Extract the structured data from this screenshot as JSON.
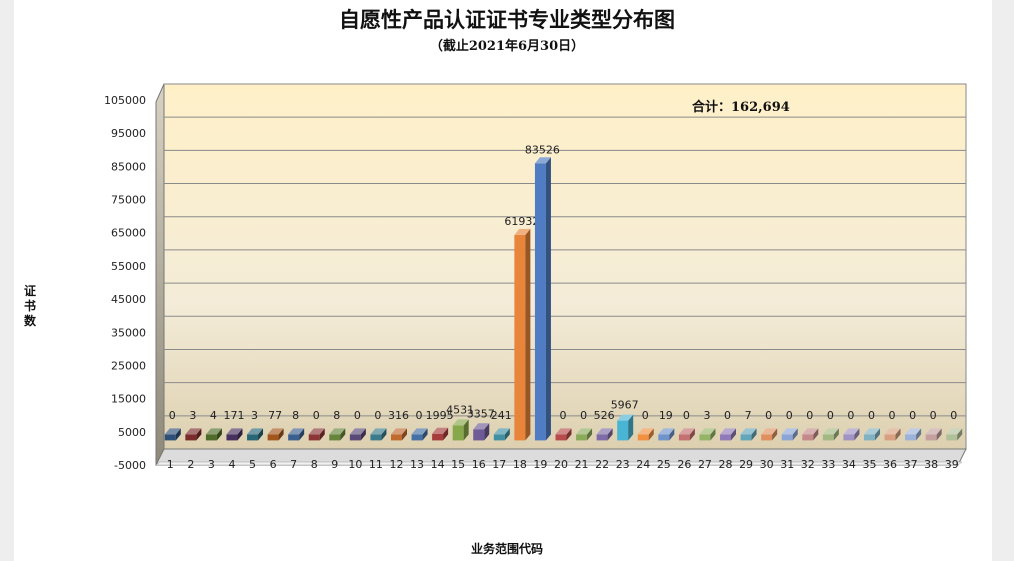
{
  "chart_data": {
    "type": "bar",
    "title": "自愿性产品认证证书专业类型分布图",
    "subtitle": "（截止2021年6月30日）",
    "ylabel": "证书数",
    "xlabel": "业务范围代码",
    "total_label": "合计：162,694",
    "ylim": [
      -5000,
      105000
    ],
    "yticks": [
      -5000,
      5000,
      15000,
      25000,
      35000,
      45000,
      55000,
      65000,
      75000,
      85000,
      95000,
      105000
    ],
    "grid": true,
    "legend": "none",
    "categories": [
      "1",
      "2",
      "3",
      "4",
      "5",
      "6",
      "7",
      "8",
      "9",
      "10",
      "11",
      "12",
      "13",
      "14",
      "15",
      "16",
      "17",
      "18",
      "19",
      "20",
      "21",
      "22",
      "23",
      "24",
      "25",
      "26",
      "27",
      "28",
      "29",
      "30",
      "31",
      "32",
      "33",
      "34",
      "35",
      "36",
      "37",
      "38",
      "39"
    ],
    "values": [
      0,
      3,
      4,
      171,
      3,
      77,
      8,
      0,
      8,
      0,
      0,
      316,
      0,
      1995,
      4531,
      3357,
      241,
      61932,
      83526,
      0,
      0,
      526,
      5967,
      0,
      19,
      0,
      3,
      0,
      7,
      0,
      0,
      0,
      0,
      0,
      0,
      0,
      0,
      0,
      0
    ],
    "colors": [
      "#2e4f78",
      "#7a2b2b",
      "#4f6b2a",
      "#46305e",
      "#276577",
      "#a3561c",
      "#3b5f8f",
      "#8c3535",
      "#66843a",
      "#5a4878",
      "#3a7c8c",
      "#c06a30",
      "#4470a6",
      "#a63c3c",
      "#86a84a",
      "#6d5a96",
      "#4090a2",
      "#e8853a",
      "#4f7cc2",
      "#b84c4c",
      "#8aaa5a",
      "#7f6ba8",
      "#4ab4d4",
      "#f09040",
      "#6f94cc",
      "#c47070",
      "#96b468",
      "#917ab8",
      "#62a6ba",
      "#e09060",
      "#8ba6d6",
      "#c48a8a",
      "#a4b884",
      "#a092c2",
      "#80b2c2",
      "#d8a080",
      "#9cb2d8",
      "#c4a0a0",
      "#b0c098"
    ]
  }
}
